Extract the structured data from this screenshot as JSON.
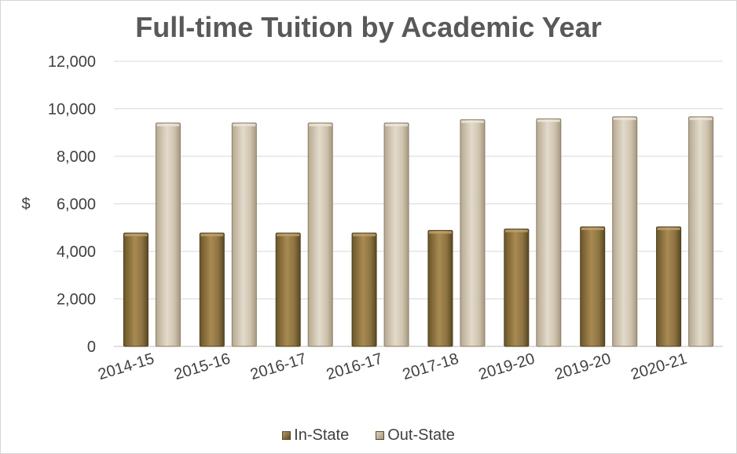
{
  "chart_data": {
    "type": "bar",
    "title": "Full-time Tuition by Academic Year",
    "xlabel": "",
    "ylabel": "$",
    "ylim": [
      0,
      12000
    ],
    "yticks": [
      0,
      2000,
      4000,
      6000,
      8000,
      10000,
      12000
    ],
    "ytick_labels": [
      "0",
      "2,000",
      "4,000",
      "6,000",
      "8,000",
      "10,000",
      "12,000"
    ],
    "grid": true,
    "legend_position": "bottom",
    "categories": [
      "2014-15",
      "2015-16",
      "2016-17",
      "2016-17",
      "2017-18",
      "2019-20",
      "2019-20",
      "2020-21"
    ],
    "series": [
      {
        "name": "In-State",
        "color": "#8f7744",
        "values": [
          4770,
          4770,
          4770,
          4770,
          4880,
          4940,
          5030,
          5030
        ]
      },
      {
        "name": "Out-State",
        "color": "#cfc4ae",
        "values": [
          9400,
          9400,
          9400,
          9400,
          9540,
          9580,
          9660,
          9660
        ]
      }
    ]
  }
}
